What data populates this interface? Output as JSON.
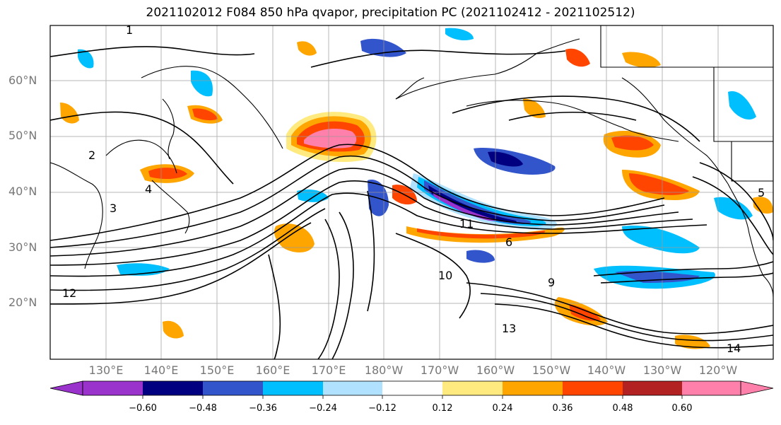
{
  "title": "2021102012 F084 850 hPa qvapor, precipitation PC (2021102412 - 2021102512)",
  "map": {
    "lat_labels": [
      "60°N",
      "50°N",
      "40°N",
      "30°N",
      "20°N"
    ],
    "lon_labels": [
      "130°E",
      "140°E",
      "150°E",
      "160°E",
      "170°E",
      "180°W",
      "170°W",
      "160°W",
      "150°W",
      "140°W",
      "130°W",
      "120°W"
    ],
    "contour_labels": [
      "1",
      "2",
      "3",
      "4",
      "5",
      "6",
      "9",
      "10",
      "11",
      "12",
      "13",
      "14"
    ],
    "gridlines": true
  },
  "colorbar": {
    "ticks": [
      "−0.60",
      "−0.48",
      "−0.36",
      "−0.24",
      "−0.12",
      "0.12",
      "0.24",
      "0.36",
      "0.48",
      "0.60"
    ],
    "colors": [
      "#9933cc",
      "#000080",
      "#3355cc",
      "#00bfff",
      "#b0e2ff",
      "#ffffff",
      "#ffea80",
      "#ffa500",
      "#ff4500",
      "#b22222",
      "#ff80aa"
    ]
  }
}
